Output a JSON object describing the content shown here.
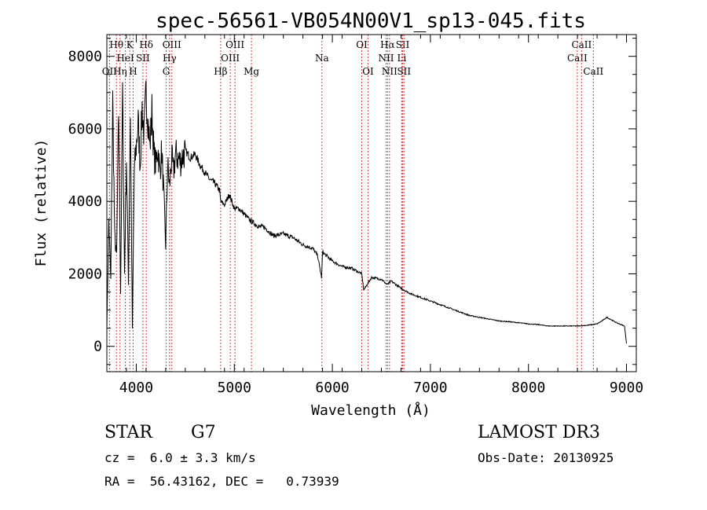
{
  "chart_data": {
    "type": "line",
    "title": "spec-56561-VB054N00V1_sp13-045.fits",
    "xlabel": "Wavelength (Å)",
    "ylabel": "Flux (relative)",
    "xlim": [
      3700,
      9100
    ],
    "ylim": [
      -700,
      8600
    ],
    "xticks": [
      4000,
      5000,
      6000,
      7000,
      8000,
      9000
    ],
    "xtick_labels": [
      "4000",
      "5000",
      "6000",
      "7000",
      "8000",
      "9000"
    ],
    "yticks": [
      0,
      2000,
      4000,
      6000,
      8000
    ],
    "ytick_labels": [
      "0",
      "2000",
      "4000",
      "6000",
      "8000"
    ],
    "series": [
      {
        "name": "flux",
        "x": [
          3700,
          3720,
          3740,
          3760,
          3780,
          3800,
          3820,
          3840,
          3860,
          3880,
          3900,
          3920,
          3940,
          3960,
          3980,
          4000,
          4020,
          4040,
          4060,
          4080,
          4100,
          4120,
          4140,
          4160,
          4180,
          4200,
          4220,
          4240,
          4260,
          4280,
          4300,
          4320,
          4340,
          4360,
          4380,
          4400,
          4450,
          4500,
          4550,
          4600,
          4650,
          4700,
          4750,
          4800,
          4850,
          4860,
          4900,
          4950,
          5000,
          5050,
          5100,
          5150,
          5200,
          5250,
          5300,
          5400,
          5500,
          5600,
          5700,
          5800,
          5850,
          5890,
          5900,
          6000,
          6100,
          6200,
          6300,
          6320,
          6400,
          6500,
          6560,
          6600,
          6700,
          6800,
          6900,
          7000,
          7100,
          7200,
          7300,
          7400,
          7500,
          7600,
          7700,
          7800,
          7900,
          8000,
          8100,
          8200,
          8300,
          8400,
          8500,
          8600,
          8700,
          8750,
          8800,
          8900,
          8980,
          9000
        ],
        "y": [
          500,
          3500,
          1800,
          6800,
          3000,
          2500,
          6500,
          1500,
          7000,
          2000,
          5200,
          1800,
          6500,
          500,
          4800,
          5500,
          6200,
          5000,
          6600,
          5800,
          7000,
          6300,
          5500,
          6500,
          5300,
          5000,
          5500,
          4800,
          5400,
          4200,
          2800,
          5000,
          4400,
          5200,
          4800,
          5300,
          5100,
          5400,
          5200,
          5300,
          5000,
          4800,
          4600,
          4500,
          4300,
          4000,
          3900,
          4200,
          3800,
          3800,
          3650,
          3500,
          3400,
          3300,
          3300,
          3050,
          3100,
          3000,
          2800,
          2700,
          2500,
          1900,
          2600,
          2350,
          2200,
          2150,
          2000,
          1550,
          1900,
          1850,
          1700,
          1800,
          1600,
          1450,
          1350,
          1250,
          1150,
          1050,
          950,
          850,
          800,
          750,
          700,
          680,
          650,
          620,
          600,
          560,
          560,
          560,
          560,
          580,
          620,
          700,
          800,
          650,
          560,
          80
        ]
      }
    ],
    "line_markers": [
      {
        "label": "Hθ",
        "x": 3798,
        "row": 1
      },
      {
        "label": "Hη",
        "x": 3835,
        "row": 3
      },
      {
        "label": "HeI",
        "x": 3889,
        "row": 2
      },
      {
        "label": "K",
        "x": 3934,
        "row": 1
      },
      {
        "label": "H",
        "x": 3968,
        "row": 3
      },
      {
        "label": "SII",
        "x": 4068,
        "row": 2
      },
      {
        "label": "Hδ",
        "x": 4102,
        "row": 1
      },
      {
        "label": "G",
        "x": 4305,
        "row": 3
      },
      {
        "label": "Hγ",
        "x": 4340,
        "row": 2
      },
      {
        "label": "OIII",
        "x": 4363,
        "row": 1
      },
      {
        "label": "Hβ",
        "x": 4861,
        "row": 3
      },
      {
        "label": "OIII",
        "x": 4959,
        "row": 2
      },
      {
        "label": "OIII",
        "x": 5007,
        "row": 1
      },
      {
        "label": "Mg",
        "x": 5175,
        "row": 3
      },
      {
        "label": "Na",
        "x": 5894,
        "row": 2
      },
      {
        "label": "OI",
        "x": 6300,
        "row": 1
      },
      {
        "label": "OI",
        "x": 6364,
        "row": 3
      },
      {
        "label": "NII",
        "x": 6548,
        "row": 2
      },
      {
        "label": "Hα",
        "x": 6563,
        "row": 1
      },
      {
        "label": "NII",
        "x": 6583,
        "row": 3
      },
      {
        "label": "Li",
        "x": 6708,
        "row": 2
      },
      {
        "label": "SII",
        "x": 6717,
        "row": 1
      },
      {
        "label": "SII",
        "x": 6731,
        "row": 3
      },
      {
        "label": "CaII",
        "x": 8498,
        "row": 2
      },
      {
        "label": "CaII",
        "x": 8542,
        "row": 1
      },
      {
        "label": "CaII",
        "x": 8662,
        "row": 3
      },
      {
        "label": "OII",
        "x": 3727,
        "row": 3
      }
    ]
  },
  "info": {
    "object_class": "STAR",
    "subclass": "G7",
    "redshift": "cz =  6.0 ± 3.3 km/s",
    "coords": "RA =  56.43162, DEC =   0.73939",
    "survey": "LAMOST DR3",
    "obs_date": "Obs-Date: 20130925"
  },
  "colors": {
    "marker": "#d04040",
    "line": "#000000"
  }
}
